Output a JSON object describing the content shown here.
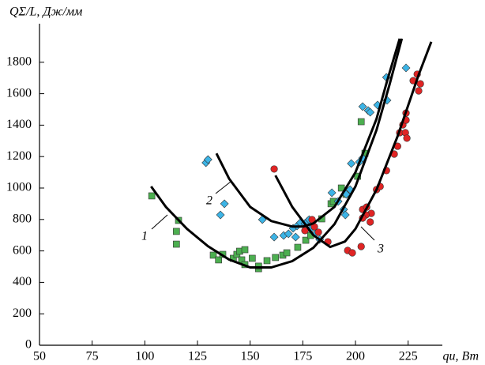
{
  "chart_data": {
    "type": "scatter",
    "y_label": "QΣ/L, Дж/мм",
    "x_label": "qи, Вт",
    "xlim": [
      50,
      240
    ],
    "xticks": [
      50,
      75,
      100,
      125,
      150,
      175,
      200,
      225
    ],
    "ylim": [
      0,
      2000
    ],
    "yticks": [
      0,
      200,
      400,
      600,
      800,
      1000,
      1200,
      1400,
      1600,
      1800
    ],
    "grid": false,
    "series": [
      {
        "kind": "points",
        "marker": "square",
        "color": "#4caf50",
        "x": [
          103.3,
          116,
          115,
          115,
          132.5,
          135,
          137,
          142,
          143.7,
          145,
          146,
          147.5,
          147.5,
          151,
          154,
          154,
          158,
          162,
          165.5,
          167.4,
          172.6,
          176.4,
          178.7,
          184,
          188.4,
          189.5,
          193.3,
          195.5,
          201,
          202.7,
          204.5
        ],
        "values": [
          950,
          794,
          724,
          643,
          573,
          543,
          578,
          553,
          578,
          598,
          543,
          608,
          513,
          553,
          487,
          503,
          538,
          558,
          573,
          588,
          623,
          668,
          698,
          804,
          900,
          915,
          1000,
          960,
          1075,
          1422,
          1221
        ]
      },
      {
        "kind": "points",
        "marker": "diamond",
        "color": "#3cb4e6",
        "x": [
          129,
          130,
          137.8,
          135.9,
          155.8,
          161.4,
          165.9,
          168.2,
          170.4,
          171.6,
          172.3,
          173.8,
          176,
          177.2,
          178,
          178.7,
          181,
          183,
          188.8,
          191.8,
          194.4,
          195.2,
          195.6,
          197.4,
          198,
          201.9,
          203.4,
          203.4,
          206,
          207,
          210.5,
          214.7,
          215,
          224
        ],
        "values": [
          1161,
          1181,
          900,
          829,
          799,
          688,
          698,
          709,
          744,
          688,
          759,
          779,
          774,
          789,
          799,
          739,
          709,
          673,
          970,
          915,
          864,
          829,
          960,
          990,
          1156,
          1166,
          1191,
          1518,
          1493,
          1482,
          1528,
          1704,
          1558,
          1764
        ]
      },
      {
        "kind": "points",
        "marker": "circle",
        "color": "#e02424",
        "x": [
          161.4,
          176,
          179.4,
          180.5,
          182.4,
          186.9,
          196.3,
          198.5,
          202.7,
          203.4,
          205.3,
          207.5,
          205,
          203.4,
          207,
          210,
          211.7,
          214.7,
          218.4,
          220,
          221,
          222.5,
          224,
          224,
          223.7,
          224.4,
          227.4,
          229.3,
          230.8,
          230
        ],
        "values": [
          1121,
          729,
          799,
          754,
          719,
          658,
          603,
          588,
          628,
          864,
          879,
          839,
          829,
          809,
          784,
          990,
          1010,
          1111,
          1216,
          1266,
          1352,
          1402,
          1477,
          1432,
          1352,
          1317,
          1683,
          1724,
          1663,
          1618
        ]
      },
      {
        "kind": "line",
        "name": "1",
        "color": "#000000",
        "x": [
          103,
          110,
          120,
          130,
          140,
          150,
          160,
          170,
          180,
          190,
          200,
          210,
          216,
          222
        ],
        "values": [
          1010,
          880,
          740,
          630,
          545,
          495,
          495,
          535,
          620,
          770,
          1010,
          1370,
          1650,
          1950
        ]
      },
      {
        "kind": "line",
        "name": "2",
        "color": "#000000",
        "x": [
          134,
          140,
          150,
          160,
          170,
          175,
          180,
          190,
          200,
          210,
          215,
          221
        ],
        "values": [
          1220,
          1060,
          880,
          790,
          755,
          755,
          775,
          880,
          1100,
          1440,
          1680,
          1950
        ]
      },
      {
        "kind": "line",
        "name": "3",
        "color": "#000000",
        "x": [
          162,
          170,
          180,
          188,
          195,
          200,
          210,
          220,
          230,
          236
        ],
        "values": [
          1080,
          880,
          700,
          625,
          660,
          740,
          990,
          1330,
          1720,
          1930
        ]
      }
    ]
  }
}
